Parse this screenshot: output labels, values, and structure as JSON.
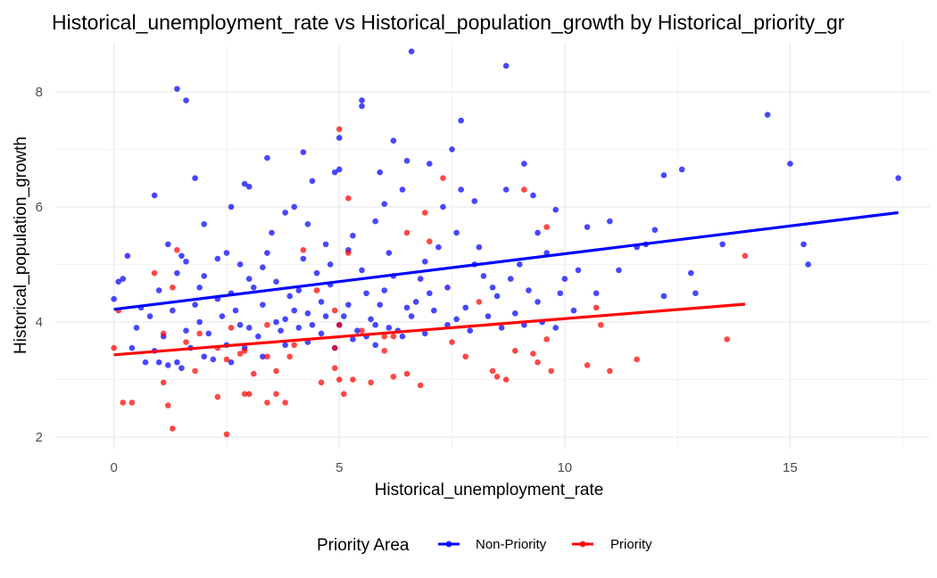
{
  "chart_data": {
    "type": "scatter",
    "title": "Historical_unemployment_rate vs Historical_population_growth by Historical_priority_gr",
    "xlabel": "Historical_unemployment_rate",
    "ylabel": "Historical_population_growth",
    "xlim": [
      -1.3,
      18.1
    ],
    "ylim": [
      1.8,
      8.85
    ],
    "x_ticks": [
      0,
      5,
      10,
      15
    ],
    "y_ticks": [
      2,
      4,
      6,
      8
    ],
    "x_tick_labels": [
      "0",
      "5",
      "10",
      "15"
    ],
    "y_tick_labels": [
      "2",
      "4",
      "6",
      "8"
    ],
    "grid": true,
    "legend": {
      "title": "Priority Area",
      "position": "bottom"
    },
    "series": [
      {
        "name": "Non-Priority",
        "color": "#0000ff",
        "points": [
          [
            6.6,
            8.7
          ],
          [
            8.7,
            8.45
          ],
          [
            1.4,
            8.05
          ],
          [
            1.6,
            7.85
          ],
          [
            14.5,
            7.6
          ],
          [
            5.5,
            7.85
          ],
          [
            5.5,
            7.75
          ],
          [
            6.2,
            7.15
          ],
          [
            5.0,
            7.2
          ],
          [
            7.7,
            7.5
          ],
          [
            7.5,
            7.0
          ],
          [
            4.2,
            6.95
          ],
          [
            3.4,
            6.85
          ],
          [
            6.5,
            6.8
          ],
          [
            7.0,
            6.75
          ],
          [
            9.1,
            6.75
          ],
          [
            15.0,
            6.75
          ],
          [
            12.6,
            6.65
          ],
          [
            5.0,
            6.65
          ],
          [
            4.9,
            6.6
          ],
          [
            5.9,
            6.6
          ],
          [
            12.2,
            6.55
          ],
          [
            17.4,
            6.5
          ],
          [
            1.8,
            6.5
          ],
          [
            4.4,
            6.45
          ],
          [
            6.4,
            6.3
          ],
          [
            7.7,
            6.3
          ],
          [
            8.7,
            6.3
          ],
          [
            0.9,
            6.2
          ],
          [
            2.9,
            6.4
          ],
          [
            3.0,
            6.35
          ],
          [
            9.3,
            6.2
          ],
          [
            2.6,
            6.0
          ],
          [
            4.0,
            6.0
          ],
          [
            7.3,
            6.0
          ],
          [
            8.0,
            6.1
          ],
          [
            6.0,
            6.05
          ],
          [
            9.8,
            5.95
          ],
          [
            3.8,
            5.9
          ],
          [
            2.0,
            5.7
          ],
          [
            4.3,
            5.7
          ],
          [
            5.8,
            5.75
          ],
          [
            7.6,
            5.55
          ],
          [
            9.4,
            5.55
          ],
          [
            10.5,
            5.65
          ],
          [
            11.0,
            5.75
          ],
          [
            12.0,
            5.6
          ],
          [
            13.5,
            5.35
          ],
          [
            15.3,
            5.35
          ],
          [
            15.4,
            5.0
          ],
          [
            11.6,
            5.3
          ],
          [
            1.2,
            5.35
          ],
          [
            1.6,
            5.05
          ],
          [
            2.3,
            5.1
          ],
          [
            3.4,
            5.2
          ],
          [
            4.7,
            5.35
          ],
          [
            5.2,
            5.25
          ],
          [
            6.1,
            5.2
          ],
          [
            7.2,
            5.3
          ],
          [
            8.1,
            5.3
          ],
          [
            9.6,
            5.2
          ],
          [
            10.3,
            4.9
          ],
          [
            11.2,
            4.9
          ],
          [
            0.3,
            5.15
          ],
          [
            0.2,
            4.75
          ],
          [
            0.1,
            4.7
          ],
          [
            1.0,
            4.55
          ],
          [
            1.4,
            4.85
          ],
          [
            1.9,
            4.6
          ],
          [
            2.6,
            4.5
          ],
          [
            3.0,
            4.75
          ],
          [
            3.6,
            4.7
          ],
          [
            4.1,
            4.55
          ],
          [
            4.8,
            4.65
          ],
          [
            5.5,
            4.9
          ],
          [
            6.2,
            4.8
          ],
          [
            6.8,
            4.75
          ],
          [
            7.4,
            4.6
          ],
          [
            8.2,
            4.8
          ],
          [
            8.8,
            4.75
          ],
          [
            9.2,
            4.55
          ],
          [
            9.9,
            4.5
          ],
          [
            10.2,
            4.2
          ],
          [
            10.7,
            4.5
          ],
          [
            12.2,
            4.45
          ],
          [
            12.9,
            4.5
          ],
          [
            0.0,
            4.4
          ],
          [
            0.6,
            4.25
          ],
          [
            0.8,
            4.1
          ],
          [
            1.3,
            4.2
          ],
          [
            1.9,
            4.0
          ],
          [
            2.4,
            4.1
          ],
          [
            2.7,
            4.2
          ],
          [
            3.3,
            4.3
          ],
          [
            3.8,
            4.05
          ],
          [
            4.3,
            4.15
          ],
          [
            4.6,
            4.35
          ],
          [
            5.2,
            4.3
          ],
          [
            5.9,
            4.3
          ],
          [
            6.5,
            4.25
          ],
          [
            7.1,
            4.2
          ],
          [
            7.6,
            4.05
          ],
          [
            8.3,
            4.1
          ],
          [
            8.9,
            4.15
          ],
          [
            9.5,
            4.0
          ],
          [
            0.5,
            3.9
          ],
          [
            1.1,
            3.75
          ],
          [
            1.6,
            3.85
          ],
          [
            2.1,
            3.8
          ],
          [
            2.8,
            3.95
          ],
          [
            3.2,
            3.75
          ],
          [
            3.7,
            3.85
          ],
          [
            4.1,
            3.9
          ],
          [
            4.6,
            3.8
          ],
          [
            5.0,
            3.95
          ],
          [
            5.4,
            3.85
          ],
          [
            5.8,
            3.95
          ],
          [
            6.3,
            3.85
          ],
          [
            6.9,
            3.8
          ],
          [
            7.4,
            3.95
          ],
          [
            7.9,
            3.85
          ],
          [
            8.6,
            3.9
          ],
          [
            9.1,
            3.95
          ],
          [
            9.8,
            3.9
          ],
          [
            0.4,
            3.55
          ],
          [
            0.9,
            3.5
          ],
          [
            1.4,
            3.3
          ],
          [
            1.7,
            3.55
          ],
          [
            2.0,
            3.4
          ],
          [
            2.5,
            3.6
          ],
          [
            2.9,
            3.55
          ],
          [
            3.3,
            3.4
          ],
          [
            3.8,
            3.6
          ],
          [
            4.3,
            3.65
          ],
          [
            4.9,
            3.55
          ],
          [
            5.3,
            3.7
          ],
          [
            5.8,
            3.6
          ],
          [
            6.4,
            3.75
          ],
          [
            1.0,
            3.3
          ],
          [
            1.5,
            3.2
          ],
          [
            2.2,
            3.35
          ],
          [
            2.6,
            3.3
          ],
          [
            0.7,
            3.3
          ],
          [
            1.2,
            3.25
          ],
          [
            3.5,
            5.55
          ],
          [
            4.8,
            5.0
          ],
          [
            2.8,
            5.0
          ],
          [
            6.7,
            4.35
          ],
          [
            8.5,
            4.45
          ],
          [
            3.9,
            4.45
          ],
          [
            4.5,
            4.85
          ],
          [
            5.6,
            4.5
          ],
          [
            1.8,
            4.3
          ],
          [
            2.3,
            4.4
          ],
          [
            3.1,
            4.6
          ],
          [
            5.1,
            4.1
          ],
          [
            6.0,
            4.55
          ],
          [
            7.0,
            4.5
          ],
          [
            7.8,
            4.25
          ],
          [
            8.4,
            4.6
          ],
          [
            9.4,
            4.35
          ],
          [
            3.6,
            4.0
          ],
          [
            4.0,
            4.2
          ],
          [
            4.7,
            4.1
          ],
          [
            5.7,
            4.05
          ],
          [
            6.6,
            4.1
          ],
          [
            3.0,
            3.9
          ],
          [
            4.4,
            3.95
          ],
          [
            5.6,
            3.75
          ],
          [
            6.1,
            3.9
          ],
          [
            1.5,
            5.15
          ],
          [
            2.0,
            4.8
          ],
          [
            2.5,
            5.2
          ],
          [
            3.3,
            4.95
          ],
          [
            4.2,
            5.1
          ],
          [
            5.3,
            5.5
          ],
          [
            6.9,
            5.05
          ],
          [
            8.0,
            5.0
          ],
          [
            9.0,
            5.0
          ],
          [
            10.0,
            4.75
          ],
          [
            12.8,
            4.85
          ],
          [
            11.8,
            5.35
          ]
        ]
      },
      {
        "name": "Priority",
        "color": "#ff0000",
        "points": [
          [
            5.0,
            7.35
          ],
          [
            7.3,
            6.5
          ],
          [
            9.1,
            6.3
          ],
          [
            5.2,
            6.15
          ],
          [
            6.9,
            5.9
          ],
          [
            9.6,
            5.65
          ],
          [
            6.5,
            5.55
          ],
          [
            7.0,
            5.4
          ],
          [
            1.4,
            5.25
          ],
          [
            5.2,
            5.2
          ],
          [
            4.2,
            5.25
          ],
          [
            14.0,
            5.15
          ],
          [
            0.9,
            4.85
          ],
          [
            1.3,
            4.6
          ],
          [
            4.5,
            4.55
          ],
          [
            8.1,
            4.35
          ],
          [
            10.7,
            4.25
          ],
          [
            0.1,
            4.2
          ],
          [
            4.9,
            4.2
          ],
          [
            3.4,
            3.95
          ],
          [
            5.0,
            3.95
          ],
          [
            10.8,
            3.95
          ],
          [
            2.6,
            3.9
          ],
          [
            5.5,
            3.85
          ],
          [
            1.1,
            3.8
          ],
          [
            1.9,
            3.8
          ],
          [
            6.2,
            3.75
          ],
          [
            13.6,
            3.7
          ],
          [
            1.6,
            3.65
          ],
          [
            7.5,
            3.65
          ],
          [
            4.0,
            3.6
          ],
          [
            4.9,
            3.55
          ],
          [
            2.3,
            3.55
          ],
          [
            2.9,
            3.5
          ],
          [
            6.0,
            3.5
          ],
          [
            0.0,
            3.55
          ],
          [
            2.8,
            3.45
          ],
          [
            3.4,
            3.4
          ],
          [
            3.9,
            3.4
          ],
          [
            7.8,
            3.4
          ],
          [
            9.3,
            3.45
          ],
          [
            9.4,
            3.3
          ],
          [
            11.6,
            3.35
          ],
          [
            10.5,
            3.25
          ],
          [
            4.9,
            3.2
          ],
          [
            3.1,
            3.1
          ],
          [
            1.8,
            3.15
          ],
          [
            9.7,
            3.15
          ],
          [
            8.4,
            3.15
          ],
          [
            11.0,
            3.15
          ],
          [
            5.0,
            3.0
          ],
          [
            5.3,
            3.0
          ],
          [
            6.2,
            3.05
          ],
          [
            8.5,
            3.05
          ],
          [
            8.7,
            3.0
          ],
          [
            4.6,
            2.95
          ],
          [
            5.7,
            2.95
          ],
          [
            6.5,
            3.1
          ],
          [
            6.8,
            2.9
          ],
          [
            1.1,
            2.95
          ],
          [
            0.2,
            2.6
          ],
          [
            0.4,
            2.6
          ],
          [
            2.3,
            2.7
          ],
          [
            2.9,
            2.75
          ],
          [
            3.0,
            2.75
          ],
          [
            3.4,
            2.6
          ],
          [
            3.6,
            2.75
          ],
          [
            3.8,
            2.6
          ],
          [
            5.1,
            2.75
          ],
          [
            1.2,
            2.55
          ],
          [
            1.3,
            2.15
          ],
          [
            2.5,
            2.05
          ],
          [
            2.5,
            3.35
          ],
          [
            3.6,
            3.15
          ],
          [
            6.0,
            3.75
          ],
          [
            8.9,
            3.5
          ],
          [
            9.6,
            3.7
          ]
        ]
      }
    ],
    "trend_lines": [
      {
        "series": "Non-Priority",
        "color": "#0000ff",
        "x": [
          0.0,
          17.4
        ],
        "y": [
          4.22,
          5.9
        ]
      },
      {
        "series": "Priority",
        "color": "#ff0000",
        "x": [
          0.0,
          14.0
        ],
        "y": [
          3.43,
          4.31
        ]
      }
    ]
  }
}
